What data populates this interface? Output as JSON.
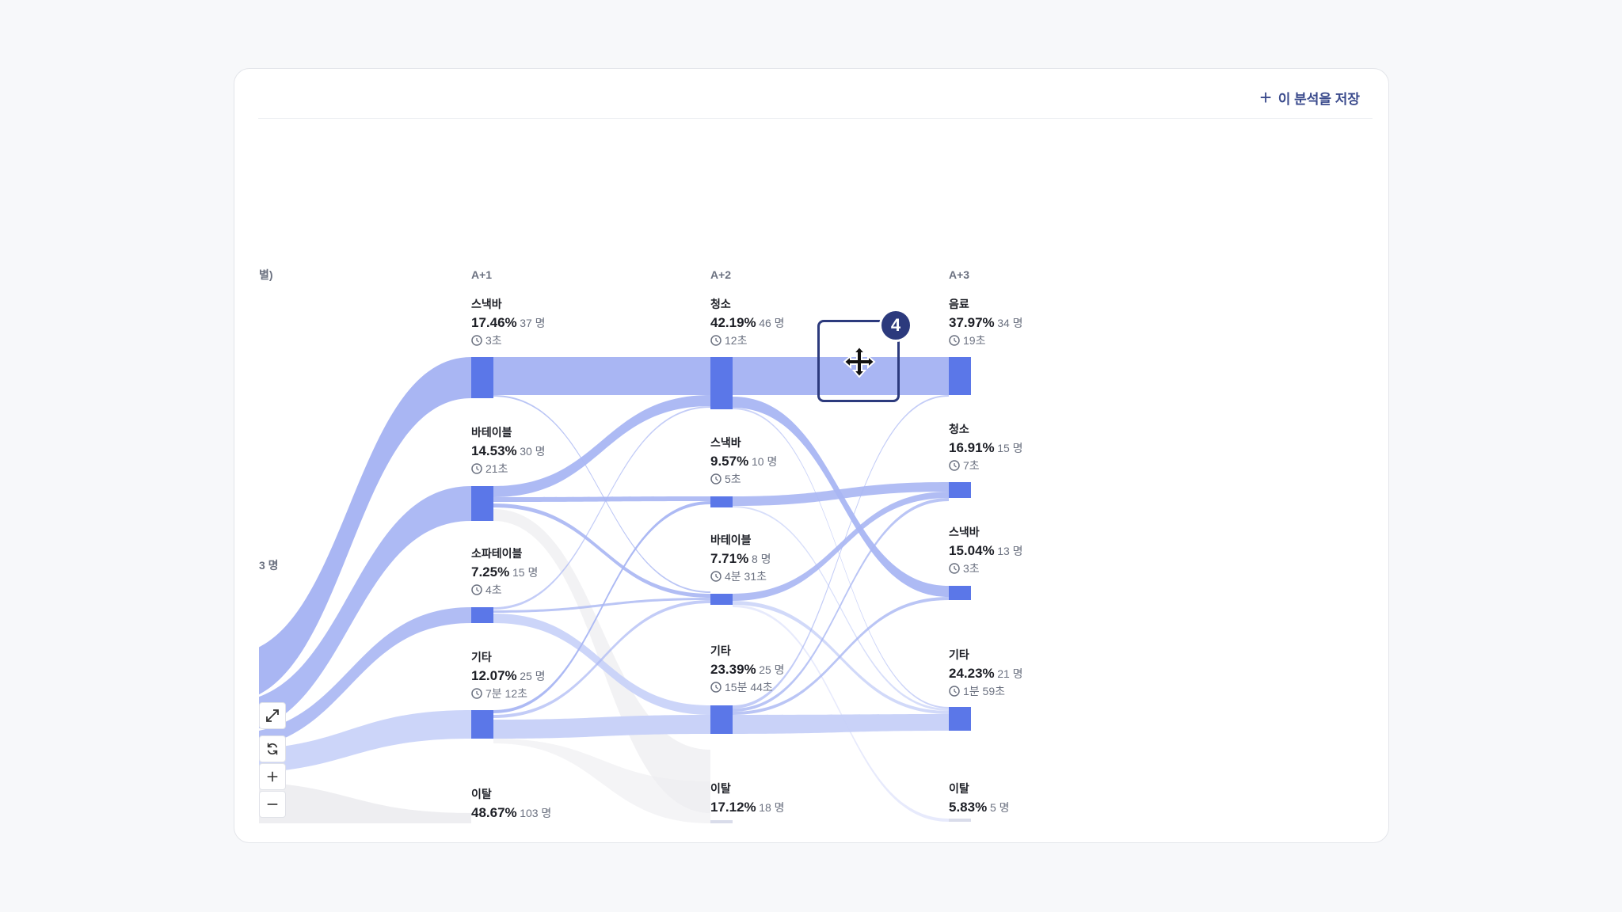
{
  "toolbar": {
    "save_label": "이 분석을 저장",
    "save_icon": "plus-icon"
  },
  "colors": {
    "node": "#5b77e8",
    "link_strong": "#a9b6f3",
    "link_mid": "#c6d0f8",
    "link_light": "#e4e8fc",
    "link_grey": "#ececf0",
    "label_dark": "#1d1f26",
    "label_muted": "#6b7180",
    "accent": "#2c3a7d"
  },
  "columns": [
    {
      "id": "c0",
      "title": "별)"
    },
    {
      "id": "c1",
      "title": "A+1"
    },
    {
      "id": "c2",
      "title": "A+2"
    },
    {
      "id": "c3",
      "title": "A+3"
    }
  ],
  "partial_label": "3 명",
  "nodes": [
    {
      "id": "c1_snack",
      "col": 1,
      "name": "스낵바",
      "pct": "17.46%",
      "count": "37 명",
      "time": "3초"
    },
    {
      "id": "c1_table",
      "col": 1,
      "name": "바테이블",
      "pct": "14.53%",
      "count": "30 명",
      "time": "21초"
    },
    {
      "id": "c1_sofa",
      "col": 1,
      "name": "소파테이블",
      "pct": "7.25%",
      "count": "15 명",
      "time": "4초"
    },
    {
      "id": "c1_etc",
      "col": 1,
      "name": "기타",
      "pct": "12.07%",
      "count": "25 명",
      "time": "7분 12초"
    },
    {
      "id": "c1_exit",
      "col": 1,
      "name": "이탈",
      "pct": "48.67%",
      "count": "103 명",
      "time": ""
    },
    {
      "id": "c2_clean",
      "col": 2,
      "name": "청소",
      "pct": "42.19%",
      "count": "46 명",
      "time": "12초"
    },
    {
      "id": "c2_snack",
      "col": 2,
      "name": "스낵바",
      "pct": "9.57%",
      "count": "10 명",
      "time": "5초"
    },
    {
      "id": "c2_table",
      "col": 2,
      "name": "바테이블",
      "pct": "7.71%",
      "count": "8 명",
      "time": "4분 31초"
    },
    {
      "id": "c2_etc",
      "col": 2,
      "name": "기타",
      "pct": "23.39%",
      "count": "25 명",
      "time": "15분 44초"
    },
    {
      "id": "c2_exit",
      "col": 2,
      "name": "이탈",
      "pct": "17.12%",
      "count": "18 명",
      "time": ""
    },
    {
      "id": "c3_drink",
      "col": 3,
      "name": "음료",
      "pct": "37.97%",
      "count": "34 명",
      "time": "19초"
    },
    {
      "id": "c3_clean",
      "col": 3,
      "name": "청소",
      "pct": "16.91%",
      "count": "15 명",
      "time": "7초"
    },
    {
      "id": "c3_snack",
      "col": 3,
      "name": "스낵바",
      "pct": "15.04%",
      "count": "13 명",
      "time": "3초"
    },
    {
      "id": "c3_etc",
      "col": 3,
      "name": "기타",
      "pct": "24.23%",
      "count": "21 명",
      "time": "1분 59초"
    },
    {
      "id": "c3_exit",
      "col": 3,
      "name": "이탈",
      "pct": "5.83%",
      "count": "5 명",
      "time": ""
    }
  ],
  "controls": [
    {
      "name": "expand-button",
      "icon": "expand-icon"
    },
    {
      "name": "refresh-button",
      "icon": "refresh-icon"
    },
    {
      "name": "zoom-in-button",
      "icon": "plus-icon"
    },
    {
      "name": "zoom-out-button",
      "icon": "minus-icon"
    }
  ],
  "step_badge": "4"
}
